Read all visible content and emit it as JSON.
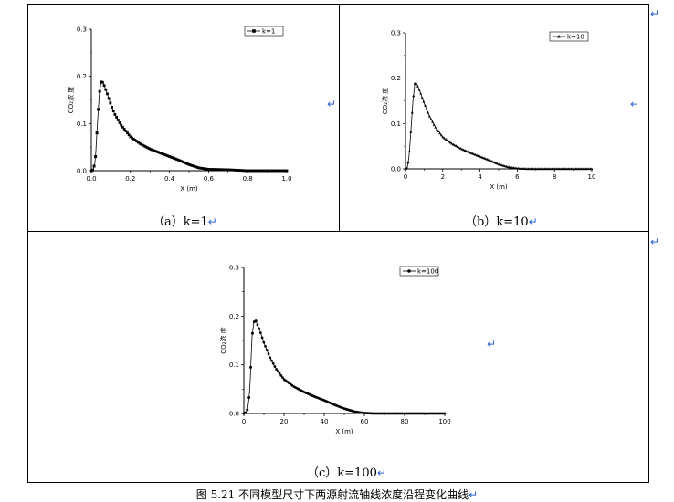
{
  "panels": [
    {
      "id": "a",
      "caption": "（a）k=1",
      "chart_data": {
        "type": "scatter",
        "marker": "square",
        "legend_label": "k=1",
        "ylabel": "CO₂浓 度",
        "xlabel": "X (m)",
        "xlim": [
          0,
          1.0
        ],
        "ylim": [
          0,
          0.3
        ],
        "xticks": [
          "0.0",
          "0.2",
          "0.4",
          "0.6",
          "0.8",
          "1.0"
        ],
        "yticks": [
          "0.0",
          "0.1",
          "0.2",
          "0.3"
        ],
        "curve": [
          [
            0,
            0
          ],
          [
            0.01,
            0.002
          ],
          [
            0.02,
            0.02
          ],
          [
            0.03,
            0.09
          ],
          [
            0.04,
            0.16
          ],
          [
            0.05,
            0.188
          ],
          [
            0.06,
            0.187
          ],
          [
            0.08,
            0.165
          ],
          [
            0.1,
            0.14
          ],
          [
            0.12,
            0.12
          ],
          [
            0.15,
            0.098
          ],
          [
            0.2,
            0.072
          ],
          [
            0.25,
            0.057
          ],
          [
            0.3,
            0.046
          ],
          [
            0.35,
            0.038
          ],
          [
            0.4,
            0.03
          ],
          [
            0.45,
            0.022
          ],
          [
            0.5,
            0.013
          ],
          [
            0.55,
            0.006
          ],
          [
            0.6,
            0.003
          ],
          [
            0.7,
            0.002
          ],
          [
            0.75,
            0.001
          ],
          [
            0.8,
            0.0
          ],
          [
            1.0,
            0.0
          ]
        ]
      }
    },
    {
      "id": "b",
      "caption": "（b）k=10",
      "chart_data": {
        "type": "scatter",
        "marker": "triangle",
        "legend_label": "k=10",
        "ylabel": "CO₂浓 度",
        "xlabel": "X (m)",
        "xlim": [
          0,
          10
        ],
        "ylim": [
          0,
          0.3
        ],
        "xticks": [
          "0",
          "2",
          "4",
          "6",
          "8",
          "10"
        ],
        "yticks": [
          "0.0",
          "0.1",
          "0.2",
          "0.3"
        ],
        "curve": [
          [
            0,
            0
          ],
          [
            0.1,
            0.002
          ],
          [
            0.2,
            0.03
          ],
          [
            0.3,
            0.09
          ],
          [
            0.4,
            0.15
          ],
          [
            0.5,
            0.188
          ],
          [
            0.6,
            0.188
          ],
          [
            0.8,
            0.168
          ],
          [
            1.0,
            0.145
          ],
          [
            1.3,
            0.115
          ],
          [
            1.6,
            0.092
          ],
          [
            2.0,
            0.07
          ],
          [
            2.5,
            0.055
          ],
          [
            3.0,
            0.044
          ],
          [
            3.5,
            0.035
          ],
          [
            4.0,
            0.027
          ],
          [
            4.5,
            0.019
          ],
          [
            5.0,
            0.01
          ],
          [
            5.5,
            0.004
          ],
          [
            6.0,
            0.001
          ],
          [
            6.5,
            0.0
          ],
          [
            10,
            0.0
          ]
        ]
      }
    },
    {
      "id": "c",
      "caption": "（c）k=100",
      "chart_data": {
        "type": "scatter",
        "marker": "circle",
        "legend_label": "k=100",
        "ylabel": "CO₂浓 度",
        "xlabel": "X (m)",
        "xlim": [
          0,
          100
        ],
        "ylim": [
          0,
          0.3
        ],
        "xticks": [
          "0",
          "20",
          "40",
          "60",
          "80",
          "100"
        ],
        "yticks": [
          "0.0",
          "0.1",
          "0.2",
          "0.3"
        ],
        "curve": [
          [
            0,
            0
          ],
          [
            1,
            0.002
          ],
          [
            2,
            0.01
          ],
          [
            3,
            0.05
          ],
          [
            4,
            0.155
          ],
          [
            5,
            0.188
          ],
          [
            6,
            0.19
          ],
          [
            8,
            0.17
          ],
          [
            10,
            0.145
          ],
          [
            13,
            0.115
          ],
          [
            16,
            0.092
          ],
          [
            20,
            0.07
          ],
          [
            25,
            0.055
          ],
          [
            30,
            0.044
          ],
          [
            35,
            0.035
          ],
          [
            40,
            0.027
          ],
          [
            45,
            0.018
          ],
          [
            50,
            0.01
          ],
          [
            55,
            0.004
          ],
          [
            60,
            0.001
          ],
          [
            65,
            0.0
          ],
          [
            100,
            0.0
          ]
        ]
      }
    }
  ],
  "figure_caption": "图 5.21 不同模型尺寸下两源射流轴线浓度沿程变化曲线",
  "para_mark": "↵"
}
